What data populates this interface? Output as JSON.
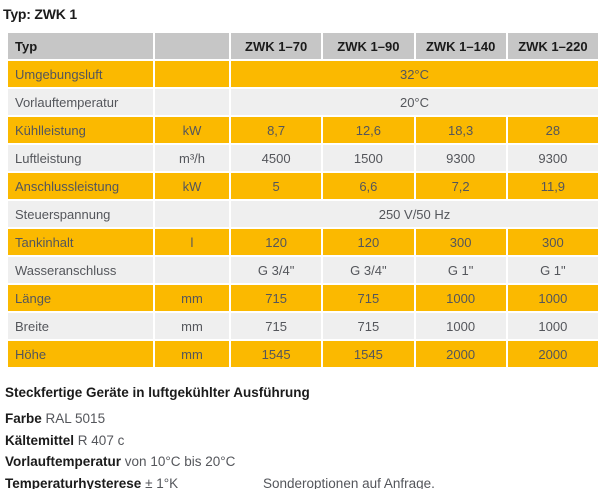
{
  "page": {
    "title": "Typ: ZWK 1"
  },
  "colors": {
    "accent_yellow": "#FBB900",
    "header_gray": "#C6C6C6",
    "row_light": "#EFEFEF",
    "text_dark": "#1B1B1B",
    "text_gray": "#54565B"
  },
  "table": {
    "header": [
      "Typ",
      "",
      "ZWK 1–70",
      "ZWK 1–90",
      "ZWK 1–140",
      "ZWK 1–220"
    ],
    "rows": [
      {
        "label": "Umgebungsluft",
        "unit": "",
        "span_value": "32°C"
      },
      {
        "label": "Vorlauftemperatur",
        "unit": "",
        "span_value": "20°C"
      },
      {
        "label": "Kühlleistung",
        "unit": "kW",
        "values": [
          "8,7",
          "12,6",
          "18,3",
          "28"
        ]
      },
      {
        "label": "Luftleistung",
        "unit": "m³/h",
        "values": [
          "4500",
          "1500",
          "9300",
          "9300"
        ]
      },
      {
        "label": "Anschlussleistung",
        "unit": "kW",
        "values": [
          "5",
          "6,6",
          "7,2",
          "11,9"
        ]
      },
      {
        "label": "Steuerspannung",
        "unit": "",
        "span_value": "250 V/50 Hz"
      },
      {
        "label": "Tankinhalt",
        "unit": "l",
        "values": [
          "120",
          "120",
          "300",
          "300"
        ]
      },
      {
        "label": "Wasseranschluss",
        "unit": "",
        "values": [
          "G 3/4\"",
          "G 3/4\"",
          "G 1\"",
          "G 1\""
        ]
      },
      {
        "label": "Länge",
        "unit": "mm",
        "values": [
          "715",
          "715",
          "1000",
          "1000"
        ]
      },
      {
        "label": "Breite",
        "unit": "mm",
        "values": [
          "715",
          "715",
          "1000",
          "1000"
        ]
      },
      {
        "label": "Höhe",
        "unit": "mm",
        "values": [
          "1545",
          "1545",
          "2000",
          "2000"
        ]
      }
    ]
  },
  "footer": {
    "heading": "Steckfertige Geräte in luftgekühlter Ausführung",
    "notes": [
      {
        "label": "Farbe",
        "text": "RAL 5015"
      },
      {
        "label": "Kältemittel",
        "text": "R 407 c"
      },
      {
        "label": "Vorlauftemperatur",
        "text": "von 10°C bis 20°C"
      },
      {
        "label": "Temperaturhysterese",
        "text": "± 1°K",
        "side_note": "Sonderoptionen auf Anfrage."
      }
    ]
  }
}
